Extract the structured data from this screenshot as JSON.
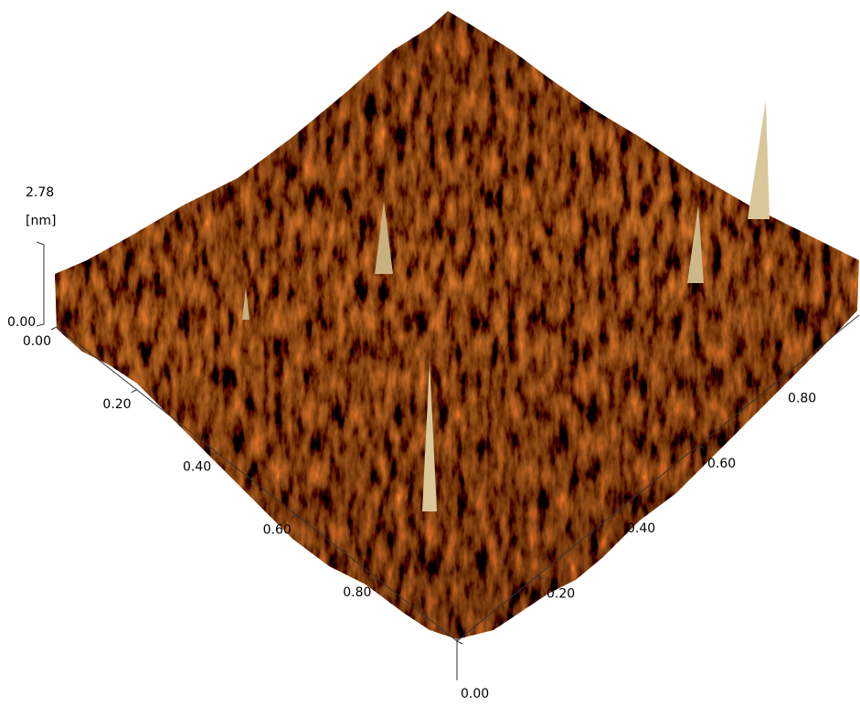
{
  "z_axis": {
    "max_label": "2.78",
    "unit": "[nm]",
    "min_label": "0.00"
  },
  "left_axis": {
    "ticks": [
      "0.00",
      "0.20",
      "0.40",
      "0.60",
      "0.80"
    ]
  },
  "right_axis": {
    "ticks": [
      "0.00",
      "0.20",
      "0.40",
      "0.60",
      "0.80"
    ]
  }
}
